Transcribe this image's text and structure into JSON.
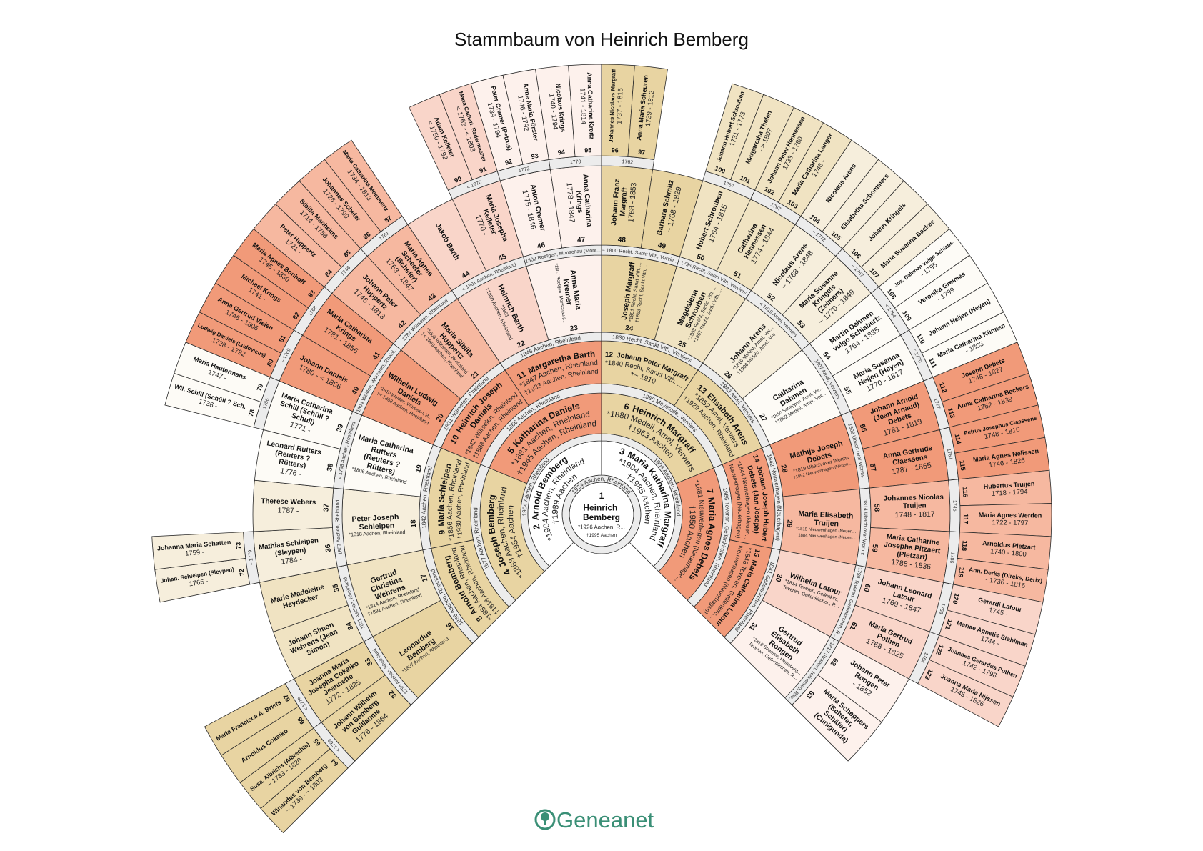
{
  "title": "Stammbaum von Heinrich Bemberg",
  "logo": "Geneanet",
  "colors": {
    "logo": "#3a8f76",
    "white": "#ffffff",
    "band": "#ececec",
    "tan": [
      "#e8d4a2",
      "#f0e3c2",
      "#f6eedc",
      "#fdfbf6"
    ],
    "salmon": [
      "#f19a79",
      "#f6b8a0",
      "#f9d5c9",
      "#fdf1ec"
    ]
  },
  "persons": [
    {
      "n": 1,
      "name": "Heinrich Bemberg",
      "info": [
        "*1926 Aachen, R...",
        "†1995 Aachen"
      ],
      "m": "1924 Aachen, Rheinland"
    },
    {
      "n": 2,
      "name": "Arnold Bemberg",
      "info": [
        "*1904 Aachen, Rheinland",
        "†1989 Aachen"
      ],
      "m": "1904 Aachen, Rheinland"
    },
    {
      "n": 3,
      "name": "Maria Katharina Margraff",
      "info": [
        "*1904 Aachen, Rheinland",
        "†1985 Aachen"
      ],
      "m": "1904 Aachen, Rheinland"
    },
    {
      "n": 4,
      "name": "Joseph Bemberg",
      "info": [
        "*1883 Aachen, Rheinland",
        "†1954 Aachen"
      ],
      "m": "1877 Aachen, Rheinland"
    },
    {
      "n": 5,
      "name": "Katharina Daniels",
      "info": [
        "*1881 Aachen, Rheinland",
        "†1945 Aachen, Rheinland"
      ],
      "m": "1866 Aachen, Rheinland"
    },
    {
      "n": 6,
      "name": "Heinrich Margraff",
      "info": [
        "*1880 Medell, Amel, Verviers",
        "†1963 Aachen"
      ],
      "m": "1880 Meyerode, Verviers"
    },
    {
      "n": 7,
      "name": "Maria Agnes Debels",
      "info": [
        "*1881 Nieuwerhagen (Neuerhage...",
        "†1950 Aachen"
      ],
      "m": "1866 Teveren, Geilenkirchen, Rheinland"
    },
    {
      "n": 8,
      "name": "Arnold Bemberg",
      "info": [
        "*1854 Aachen, Rheinland",
        "†1918 Aachen, Rheinland"
      ],
      "m": "1835 Aachen, Rheinland"
    },
    {
      "n": 9,
      "name": "Maria Schleipen",
      "info": [
        "*1856 Aachen, Rheinland",
        "†1930 Aachen, Rheinland"
      ],
      "m": "1842 Aachen, Rheinland"
    },
    {
      "n": 10,
      "name": "Heinrich Joseph Daniels",
      "info": [
        "*1842 Würselen, Rheinland",
        "†1888 Aachen, Rheinland"
      ],
      "m": "1831 Würselen, Rheinland"
    },
    {
      "n": 11,
      "name": "Margaretha Barth",
      "info": [
        "*1847 Aachen, Rheinland",
        "†1933 Aachen, Rheinland"
      ],
      "m": "1846 Aachen, Rheinland"
    },
    {
      "n": 12,
      "name": "Johann Peter Margraff",
      "info": [
        "*1840 Recht, Sankt Vith, ...",
        "†~ 1910"
      ],
      "m": "1830 Recht, Sankt Vith, Verviers"
    },
    {
      "n": 13,
      "name": "Elisabeth Arens",
      "info": [
        "*1852 Amel, Verviers",
        "†1929 Aachen, Rheinland"
      ],
      "m": "1843 Amel, Verviers"
    },
    {
      "n": 14,
      "name": "Johann Joseph Hubert Debets (Jan Joseph)",
      "info": [
        "*1844 Neuwerhagen (Neuen...",
        "Neuwerhagen (Neuerhagen)"
      ],
      "m": "1842 Neuwerhagen (Neuerhagen)"
    },
    {
      "n": 15,
      "name": "Maria Catharina Latour",
      "info": [
        "*1848 Teveren, Geilenkirc...",
        "Neuwerhagen (Neuerhagen)"
      ],
      "m": "1841 Geilenkirchen, Rheinland"
    },
    {
      "n": 16,
      "name": "Leonardus Bemberg",
      "info": [
        "*1807 Aachen, Rheinland"
      ],
      "m": "1794 Aachen, Rheinland"
    },
    {
      "n": 17,
      "name": "Gertrud Christina Wehrens",
      "info": [
        "*1814 Aachen, Rheinland",
        "†1891 Aachen, Rheinland"
      ],
      "m": "1811 Aachen, Rheinland"
    },
    {
      "n": 18,
      "name": "Peter Joseph Schleipen",
      "info": [
        "*1818 Aachen, Rheinland"
      ],
      "m": "1807 Aachen, Rheinland"
    },
    {
      "n": 19,
      "name": "Maria Catharina Rutters (Reuters ? Rütters)",
      "info": [
        "*1806 Aachen, Rheinland"
      ],
      "m": "< 1798 Aachen, Rheinland"
    },
    {
      "n": 20,
      "name": "Wilhelm Ludwig Daniels",
      "info": [
        "*1810 Weiden, Würselen, R...",
        "†< 1868 Aachen, Rheinland"
      ],
      "m": "1804 Weiden, Würselen, Rheinl..."
    },
    {
      "n": 21,
      "name": "Maria Sibilla Huppertz",
      "info": [
        "*1803 Würselen, Rheinland",
        "†< 1869 Aachen, Rheinland"
      ],
      "m": "1787 Würselen, Rheinland"
    },
    {
      "n": 22,
      "name": "Heinrich Barth",
      "info": [
        "*1801",
        "†1880 Aachen, Rheinland"
      ],
      "m": "< 1801 Aachen, Rheinland"
    },
    {
      "n": 23,
      "name": "Anna Maria Kremer",
      "info": [
        "*1807 Roetgen, Monschau (..."
      ],
      "m": "1802 Roetgen, Monschau (Mont..."
    },
    {
      "n": 24,
      "name": "Joseph Margraff",
      "info": [
        "*1801 Recht, Sankt Vith, ...",
        "†1853 Recht, Sankt Vith, ..."
      ],
      "m": "~ 1800 Recht, Sankt Vith, Vervie..."
    },
    {
      "n": 25,
      "name": "Magdalena Schrouben",
      "info": [
        "*1808 Recht, Sankt Vith, ...",
        "†1867 Recht, Sankt Vith, ..."
      ],
      "m": "1796 Recht, Sankt Vith, Verviers"
    },
    {
      "n": 26,
      "name": "Johann Arens",
      "info": [
        "*1819 Mirfeld, Amel, Ver...",
        "†1906 Mirfeld, Amel, Ver..."
      ],
      "m": "< 1819 Amel, Verviers"
    },
    {
      "n": 27,
      "name": "Catharina Dahmen",
      "info": [
        "*1810 Schoppen, Amel, Ver...",
        "†1892 Medell, Amel, Ver..."
      ],
      "m": "1807 Amel, Verviers"
    },
    {
      "n": 28,
      "name": "Mathijs Joseph Debets",
      "info": [
        "*1819 Ubach over Worms",
        "†1892 Nieuwenhagen (Neuen..."
      ],
      "m": "1808 Ubach over Worms"
    },
    {
      "n": 29,
      "name": "Maria Elisabeth Truijen",
      "info": [
        "*1815 Nieuwenhagen (Neuen...",
        "†1884 Nieuwenhagen (Neuen..."
      ],
      "m": "1814 Ubach over Worms"
    },
    {
      "n": 30,
      "name": "Wilhelm Latour",
      "info": [
        "*1814 Teveren, Geilenkirc...",
        "Teveren, Geilenkirchen, R..."
      ],
      "m": "1798 Teveren, Geilenkirchen, R..."
    },
    {
      "n": 31,
      "name": "Gertrud Elisabeth Rongen",
      "info": [
        "*1818 Straeten, Heinsberg...",
        "Teveren, Geilenkirchen, R..."
      ],
      "m": "~ 1817 Straeten, Heinsberg, Rhe..."
    },
    {
      "n": 32,
      "name": "Johann Wilhelm von Bemberg Guillaume",
      "info": [
        "1776 - 1864"
      ],
      "m": "< 1769"
    },
    {
      "n": 33,
      "name": "Joanna Maria Josepha Cokaiko Jeannette",
      "info": [
        "1772 - 1825"
      ],
      "m": "< 1779"
    },
    {
      "n": 34,
      "name": "Johann Simon Wehrens (Jean Simon)",
      "info": []
    },
    {
      "n": 35,
      "name": "Marie Madeleine Heydecker",
      "info": []
    },
    {
      "n": 36,
      "name": "Mathias Schleipen (Sleypen)",
      "info": [
        "1784 -"
      ],
      "m": "~ 1779"
    },
    {
      "n": 37,
      "name": "Therese Webers",
      "info": [
        "1787 -"
      ]
    },
    {
      "n": 38,
      "name": "Leonard Rutters (Reuters ? Rütters)",
      "info": [
        "1776 -"
      ]
    },
    {
      "n": 39,
      "name": "Maria Catharina Schill (Schüll ? Schull)",
      "info": [
        "1771 -"
      ],
      "m": "1766"
    },
    {
      "n": 40,
      "name": "Johann Daniels",
      "info": [
        "1780 - < 1856"
      ],
      "m": "~ 1769"
    },
    {
      "n": 41,
      "name": "Maria Catharina Krings",
      "info": [
        "1781 - 1856"
      ],
      "m": "1768"
    },
    {
      "n": 42,
      "name": "Johann Peter Huppertz",
      "info": [
        "1746 - 1813"
      ],
      "m": "1746"
    },
    {
      "n": 43,
      "name": "Maria Agnes Scheefer (Schefer)",
      "info": [
        "1763 - 1847"
      ],
      "m": "1761"
    },
    {
      "n": 44,
      "name": "Jakob Barth",
      "info": []
    },
    {
      "n": 45,
      "name": "Maria Josepha Kelleter",
      "info": [
        "1770 -"
      ],
      "m": "< 1770"
    },
    {
      "n": 46,
      "name": "Anton Cremer",
      "info": [
        "1775 - 1846"
      ],
      "m": "1772"
    },
    {
      "n": 47,
      "name": "Anna Catharina Krings",
      "info": [
        "1778 - 1847"
      ],
      "m": "1770"
    },
    {
      "n": 48,
      "name": "Johann Franz Margraff",
      "info": [
        "1768 - 1853"
      ],
      "m": "1762"
    },
    {
      "n": 49,
      "name": "Barbara Schmitz",
      "info": [
        "~ 1768 - 1829"
      ]
    },
    {
      "n": 50,
      "name": "Hubert Schrouben",
      "info": [
        "1764 - 1815"
      ],
      "m": "1757"
    },
    {
      "n": 51,
      "name": "Catharina Hennessen",
      "info": [
        "1774 - 1844"
      ],
      "m": "1767"
    },
    {
      "n": 52,
      "name": "Nicolaus Arens",
      "info": [
        "~ 1768 - 1848"
      ],
      "m": "~ 1772"
    },
    {
      "n": 53,
      "name": "Maria Susanne Kringels (Zeimers)",
      "info": [
        "~ 1770 - 1849"
      ],
      "m": "~ 1767"
    },
    {
      "n": 54,
      "name": "Martin Dahmen vulgo Schiabertz",
      "info": [
        "1764 - 1835"
      ],
      "m": "< 1764"
    },
    {
      "n": 55,
      "name": "Maria Susanna Heijen (Heyen)",
      "info": [
        "1770 - 1817"
      ],
      "m": "< 1770"
    },
    {
      "n": 56,
      "name": "Johann Arnold (Jean Arnaud) Debets",
      "info": [
        "1781 - 1819"
      ],
      "m": "1777"
    },
    {
      "n": 57,
      "name": "Anna Gertrude Claessens",
      "info": [
        "1787 - 1865"
      ],
      "m": "1767"
    },
    {
      "n": 58,
      "name": "Johannes Nicolas Truijen",
      "info": [
        "1748 - 1817"
      ],
      "m": "1745"
    },
    {
      "n": 59,
      "name": "Maria Catharine Josepha Pitzaert (Pletzart)",
      "info": [
        "1788 - 1836"
      ],
      "m": "1786"
    },
    {
      "n": 60,
      "name": "Johann Leonard Latour",
      "info": [
        "1769 - 1847"
      ],
      "m": "1769"
    },
    {
      "n": 61,
      "name": "Maria Gertrud Pothen",
      "info": [
        "1768 - 1825"
      ],
      "m": "1764"
    },
    {
      "n": 62,
      "name": "Johann Peter Rongen",
      "info": [
        "- 1852"
      ]
    },
    {
      "n": 63,
      "name": "Maria Scheppers (Schefer, Schäfer) (Cunigunda)",
      "info": []
    },
    {
      "n": 64,
      "name": "Winandus von Bemberg",
      "info": [
        "~ 1739 - ~ 1803"
      ]
    },
    {
      "n": 65,
      "name": "Susa. Albrichs (Albrechts)",
      "info": [
        "~ 1733 - 1820"
      ]
    },
    {
      "n": 66,
      "name": "Arnoldus Cokaiko",
      "info": []
    },
    {
      "n": 67,
      "name": "Maria Francisca A. Briefs",
      "info": []
    },
    {
      "n": 72,
      "name": "Johan. Schleipen (Sleypen)",
      "info": [
        "1766 -"
      ]
    },
    {
      "n": 73,
      "name": "Johanna Maria Schatten",
      "info": [
        "1759 -"
      ]
    },
    {
      "n": 78,
      "name": "Wil. Schill (Schüll ? Sch.",
      "info": [
        "1738 -"
      ]
    },
    {
      "n": 79,
      "name": "Maria Hautermans",
      "info": [
        "1747 -"
      ]
    },
    {
      "n": 80,
      "name": "Ludwig Daniels (Ludovicus)",
      "info": [
        "1728 - 1792"
      ]
    },
    {
      "n": 81,
      "name": "Anna Gertrud Vielen",
      "info": [
        "1746 - 1806"
      ]
    },
    {
      "n": 82,
      "name": "Michael Krings",
      "info": [
        "1741 -"
      ]
    },
    {
      "n": 83,
      "name": "Maria Agnes Bonhoff",
      "info": [
        "1745 - 1830"
      ]
    },
    {
      "n": 84,
      "name": "Peter Huppertz",
      "info": [
        "1721 -"
      ]
    },
    {
      "n": 85,
      "name": "Sibilla Manheims",
      "info": [
        "1714 - 1758"
      ]
    },
    {
      "n": 86,
      "name": "Johannes Schefer",
      "info": [
        "1726 - 1799"
      ]
    },
    {
      "n": 87,
      "name": "Maria Catharina Mommertz",
      "info": [
        "1734 - 1813"
      ]
    },
    {
      "n": 90,
      "name": "Adam Kelleter",
      "info": [
        "< 1750 - 1792"
      ]
    },
    {
      "n": 91,
      "name": "Maria Cathari. Radermacher",
      "info": [
        "< 1762 - < 1803"
      ]
    },
    {
      "n": 92,
      "name": "Peter Cremer (Petrus)",
      "info": [
        "1739 - 1794"
      ]
    },
    {
      "n": 93,
      "name": "Anne Maria Förster",
      "info": [
        "1746 - 1792"
      ]
    },
    {
      "n": 94,
      "name": "Nicolaus Krings",
      "info": [
        "~ 1740 - 1794"
      ]
    },
    {
      "n": 95,
      "name": "Anna Catharina Kreitz",
      "info": [
        "1741 - 1814"
      ]
    },
    {
      "n": 96,
      "name": "Johannes Nicolaus Margraff",
      "info": [
        "1737 - 1815"
      ]
    },
    {
      "n": 97,
      "name": "Anna Maria Scheuren",
      "info": [
        "1739 - 1812"
      ]
    },
    {
      "n": 100,
      "name": "Johann Hubert Schrouben",
      "info": [
        "1731 - 1773"
      ]
    },
    {
      "n": 101,
      "name": "Margaretha Thelen",
      "info": [
        "- > 1807"
      ]
    },
    {
      "n": 102,
      "name": "Johann Peter Hennessen",
      "info": [
        "1733 - 1780"
      ]
    },
    {
      "n": 103,
      "name": "Maria Catharina Langer",
      "info": [
        "1746 -"
      ]
    },
    {
      "n": 104,
      "name": "Nicolaus Arens",
      "info": []
    },
    {
      "n": 105,
      "name": "Elisabetha Schommers",
      "info": []
    },
    {
      "n": 106,
      "name": "Johann Kringels",
      "info": []
    },
    {
      "n": 107,
      "name": "Maria Susanna Backes",
      "info": []
    },
    {
      "n": 108,
      "name": "Jos. Dahmen vulgo Schiabe.",
      "info": [
        "- 1795"
      ]
    },
    {
      "n": 109,
      "name": "Veronika Greimes",
      "info": [
        "- 1799"
      ]
    },
    {
      "n": 110,
      "name": "Johann Heijen (Heyen)",
      "info": []
    },
    {
      "n": 111,
      "name": "Maria Catharina Künnen",
      "info": [
        "- 1803"
      ]
    },
    {
      "n": 112,
      "name": "Joseph Debets",
      "info": [
        "1746 - 1827"
      ]
    },
    {
      "n": 113,
      "name": "Anna Catharina Beckers",
      "info": [
        "1752 - 1839"
      ]
    },
    {
      "n": 114,
      "name": "Petrus Josephus Claessens",
      "info": [
        "1748 - 1816"
      ]
    },
    {
      "n": 115,
      "name": "Maria Agnes Nelissen",
      "info": [
        "1746 - 1826"
      ]
    },
    {
      "n": 116,
      "name": "Hubertus Truijen",
      "info": [
        "1718 - 1794"
      ]
    },
    {
      "n": 117,
      "name": "Maria Agnes Werden",
      "info": [
        "1722 - 1797"
      ]
    },
    {
      "n": 118,
      "name": "Arnoldus Pletzart",
      "info": [
        "1740 - 1800"
      ]
    },
    {
      "n": 119,
      "name": "Ann. Derks (Dircks, Derix)",
      "info": [
        "~ 1736 - 1816"
      ]
    },
    {
      "n": 120,
      "name": "Gerardi Latour",
      "info": [
        "1745 -"
      ]
    },
    {
      "n": 121,
      "name": "Mariae Agnetis Stahlman",
      "info": [
        "1744 -"
      ]
    },
    {
      "n": 122,
      "name": "Joannes Gerardus Pothen",
      "info": [
        "1742 - 1798"
      ]
    },
    {
      "n": 123,
      "name": "Joanna Maria Nijssen",
      "info": [
        "1745 - 1826"
      ]
    }
  ]
}
